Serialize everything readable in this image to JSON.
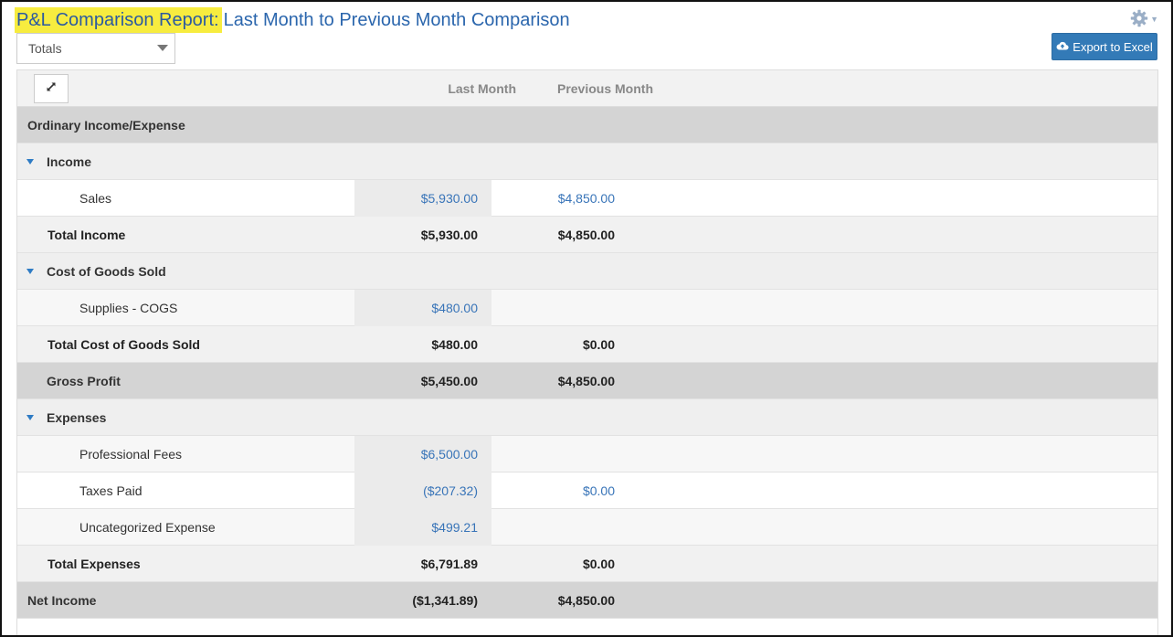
{
  "header": {
    "title_main": "P&L Comparison Report:",
    "title_sub": "Last Month to Previous Month Comparison",
    "settings_icon": "gear-icon"
  },
  "toolbar": {
    "view_select": "Totals",
    "export_label": "Export to Excel",
    "export_icon": "cloud-upload-icon",
    "expand_icon": "expand-arrows-icon"
  },
  "colors": {
    "accent": "#337ab7",
    "title_highlight": "#f7ec3f",
    "link": "#3874b8"
  },
  "columns": [
    "Last Month",
    "Previous Month"
  ],
  "rows": [
    {
      "type": "section",
      "label": "Ordinary Income/Expense",
      "v1": "",
      "v2": ""
    },
    {
      "type": "group",
      "label": "Income"
    },
    {
      "type": "detail",
      "label": "Sales",
      "v1": "$5,930.00",
      "v2": "$4,850.00"
    },
    {
      "type": "total",
      "label": "Total Income",
      "v1": "$5,930.00",
      "v2": "$4,850.00"
    },
    {
      "type": "group",
      "label": "Cost of Goods Sold"
    },
    {
      "type": "detail",
      "label": "Supplies - COGS",
      "v1": "$480.00",
      "v2": ""
    },
    {
      "type": "total",
      "label": "Total Cost of Goods Sold",
      "v1": "$480.00",
      "v2": "$0.00"
    },
    {
      "type": "section",
      "label": "Gross Profit",
      "v1": "$5,450.00",
      "v2": "$4,850.00"
    },
    {
      "type": "group",
      "label": "Expenses"
    },
    {
      "type": "detail",
      "label": "Professional Fees",
      "v1": "$6,500.00",
      "v2": ""
    },
    {
      "type": "detail",
      "label": "Taxes Paid",
      "v1": "($207.32)",
      "v2": "$0.00"
    },
    {
      "type": "detail",
      "label": "Uncategorized Expense",
      "v1": "$499.21",
      "v2": ""
    },
    {
      "type": "total",
      "label": "Total Expenses",
      "v1": "$6,791.89",
      "v2": "$0.00"
    },
    {
      "type": "section",
      "label": "Net Income",
      "v1": "($1,341.89)",
      "v2": "$4,850.00"
    }
  ]
}
